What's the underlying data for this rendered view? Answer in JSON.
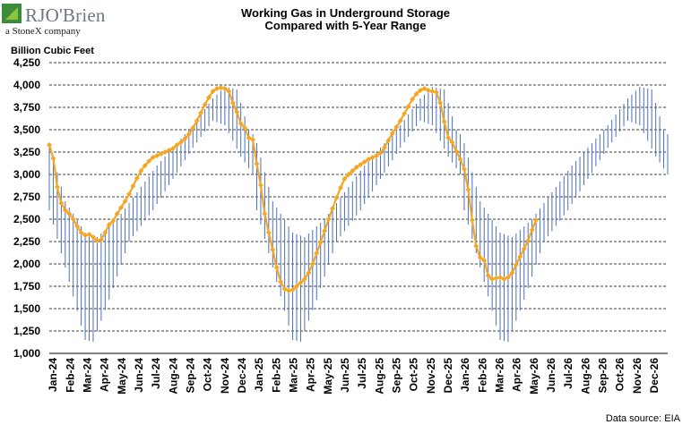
{
  "logo": {
    "brand": "RJO'Brien",
    "tagline": "a StoneX company",
    "colors": {
      "mark_dark": "#3c8c3c",
      "mark_light": "#8cc63f",
      "text": "#6b7682"
    }
  },
  "title_line1": "Working Gas in Underground Storage",
  "title_line2": "Compared with 5-Year Range",
  "source_text": "Data source: EIA",
  "chart_data": {
    "type": "line",
    "ylabel": "Billion Cubic Feet",
    "ylim": [
      1000,
      4250
    ],
    "yticks": [
      1000,
      1250,
      1500,
      1750,
      2000,
      2250,
      2500,
      2750,
      3000,
      3250,
      3500,
      3750,
      4000,
      4250
    ],
    "ytick_labels": [
      "1,000",
      "1,250",
      "1,500",
      "1,750",
      "2,000",
      "2,250",
      "2,500",
      "2,750",
      "3,000",
      "3,250",
      "3,500",
      "3,750",
      "4,000",
      "4,250"
    ],
    "xtick_labels": [
      "Jan-24",
      "Feb-24",
      "Mar-24",
      "Apr-24",
      "May-24",
      "Jun-24",
      "Jul-24",
      "Aug-24",
      "Sep-24",
      "Oct-24",
      "Nov-24",
      "Dec-24",
      "Jan-25",
      "Feb-25",
      "Mar-25",
      "Apr-25",
      "May-25",
      "Jun-25",
      "Jul-25",
      "Aug-25",
      "Sep-25",
      "Oct-25",
      "Nov-25",
      "Dec-25",
      "Jan-26",
      "Feb-26",
      "Mar-26",
      "Apr-26",
      "May-26",
      "Jun-26",
      "Jul-26",
      "Aug-26",
      "Sep-26",
      "Oct-26",
      "Nov-26",
      "Dec-26"
    ],
    "grid": "horizontal dashed",
    "colors": {
      "storage": "#f5a623",
      "range": "#4a6fbf",
      "grid": "#000000"
    },
    "range_envelope": {
      "name": "5-Year Range",
      "weeks_per_year": 52,
      "low_anchors": [
        [
          0,
          2600
        ],
        [
          5,
          1800
        ],
        [
          9,
          1150
        ],
        [
          11,
          1130
        ],
        [
          15,
          1600
        ],
        [
          20,
          2250
        ],
        [
          26,
          2600
        ],
        [
          31,
          2950
        ],
        [
          36,
          3300
        ],
        [
          41,
          3600
        ],
        [
          44,
          3550
        ],
        [
          48,
          3200
        ],
        [
          51,
          3000
        ]
      ],
      "high_anchors": [
        [
          0,
          3350
        ],
        [
          4,
          2700
        ],
        [
          9,
          2350
        ],
        [
          12,
          2300
        ],
        [
          17,
          2500
        ],
        [
          22,
          2800
        ],
        [
          27,
          3100
        ],
        [
          32,
          3350
        ],
        [
          36,
          3550
        ],
        [
          41,
          3850
        ],
        [
          44,
          3980
        ],
        [
          47,
          3950
        ],
        [
          50,
          3500
        ],
        [
          51,
          3450
        ]
      ]
    },
    "storage": {
      "name": "Working Gas in Storage",
      "anchors": [
        [
          0,
          3330
        ],
        [
          1,
          3180
        ],
        [
          2,
          2860
        ],
        [
          3,
          2680
        ],
        [
          4,
          2600
        ],
        [
          5,
          2560
        ],
        [
          6,
          2500
        ],
        [
          7,
          2420
        ],
        [
          8,
          2350
        ],
        [
          9,
          2320
        ],
        [
          10,
          2330
        ],
        [
          11,
          2300
        ],
        [
          12,
          2260
        ],
        [
          13,
          2270
        ],
        [
          14,
          2350
        ],
        [
          15,
          2440
        ],
        [
          16,
          2480
        ],
        [
          17,
          2560
        ],
        [
          18,
          2630
        ],
        [
          19,
          2700
        ],
        [
          20,
          2780
        ],
        [
          21,
          2870
        ],
        [
          22,
          2960
        ],
        [
          23,
          3040
        ],
        [
          24,
          3100
        ],
        [
          25,
          3150
        ],
        [
          26,
          3190
        ],
        [
          27,
          3210
        ],
        [
          28,
          3230
        ],
        [
          29,
          3250
        ],
        [
          30,
          3270
        ],
        [
          31,
          3290
        ],
        [
          32,
          3330
        ],
        [
          33,
          3360
        ],
        [
          34,
          3400
        ],
        [
          35,
          3450
        ],
        [
          36,
          3520
        ],
        [
          37,
          3600
        ],
        [
          38,
          3690
        ],
        [
          39,
          3780
        ],
        [
          40,
          3860
        ],
        [
          41,
          3930
        ],
        [
          42,
          3960
        ],
        [
          43,
          3970
        ],
        [
          44,
          3960
        ],
        [
          45,
          3930
        ],
        [
          46,
          3800
        ],
        [
          47,
          3700
        ],
        [
          48,
          3570
        ],
        [
          49,
          3520
        ],
        [
          50,
          3410
        ],
        [
          51,
          3390
        ],
        [
          52,
          3120
        ],
        [
          53,
          2880
        ],
        [
          54,
          2560
        ],
        [
          55,
          2350
        ],
        [
          56,
          2160
        ],
        [
          57,
          1960
        ],
        [
          58,
          1800
        ],
        [
          59,
          1720
        ],
        [
          60,
          1700
        ],
        [
          61,
          1710
        ],
        [
          62,
          1750
        ],
        [
          63,
          1790
        ],
        [
          64,
          1830
        ],
        [
          65,
          1900
        ],
        [
          66,
          2000
        ],
        [
          67,
          2120
        ],
        [
          68,
          2240
        ],
        [
          69,
          2370
        ],
        [
          70,
          2500
        ],
        [
          71,
          2620
        ],
        [
          72,
          2740
        ],
        [
          73,
          2850
        ],
        [
          74,
          2950
        ],
        [
          75,
          3000
        ],
        [
          76,
          3040
        ],
        [
          77,
          3080
        ],
        [
          78,
          3110
        ],
        [
          79,
          3140
        ],
        [
          80,
          3170
        ],
        [
          81,
          3190
        ],
        [
          82,
          3210
        ],
        [
          83,
          3240
        ],
        [
          84,
          3300
        ],
        [
          85,
          3380
        ],
        [
          86,
          3460
        ],
        [
          87,
          3530
        ],
        [
          88,
          3600
        ],
        [
          89,
          3680
        ],
        [
          90,
          3760
        ],
        [
          91,
          3840
        ],
        [
          92,
          3900
        ],
        [
          93,
          3940
        ],
        [
          94,
          3960
        ],
        [
          95,
          3940
        ],
        [
          96,
          3930
        ],
        [
          97,
          3920
        ],
        [
          98,
          3800
        ],
        [
          99,
          3590
        ],
        [
          100,
          3410
        ],
        [
          101,
          3360
        ],
        [
          102,
          3260
        ],
        [
          103,
          3170
        ],
        [
          104,
          3060
        ],
        [
          105,
          2830
        ],
        [
          106,
          2490
        ],
        [
          107,
          2200
        ],
        [
          108,
          2070
        ],
        [
          109,
          2040
        ],
        [
          110,
          1870
        ],
        [
          111,
          1830
        ],
        [
          112,
          1840
        ],
        [
          113,
          1850
        ],
        [
          114,
          1830
        ],
        [
          115,
          1850
        ],
        [
          116,
          1900
        ],
        [
          117,
          1990
        ],
        [
          118,
          2080
        ],
        [
          119,
          2170
        ],
        [
          120,
          2260
        ],
        [
          121,
          2380
        ],
        [
          122,
          2490
        ]
      ]
    }
  }
}
